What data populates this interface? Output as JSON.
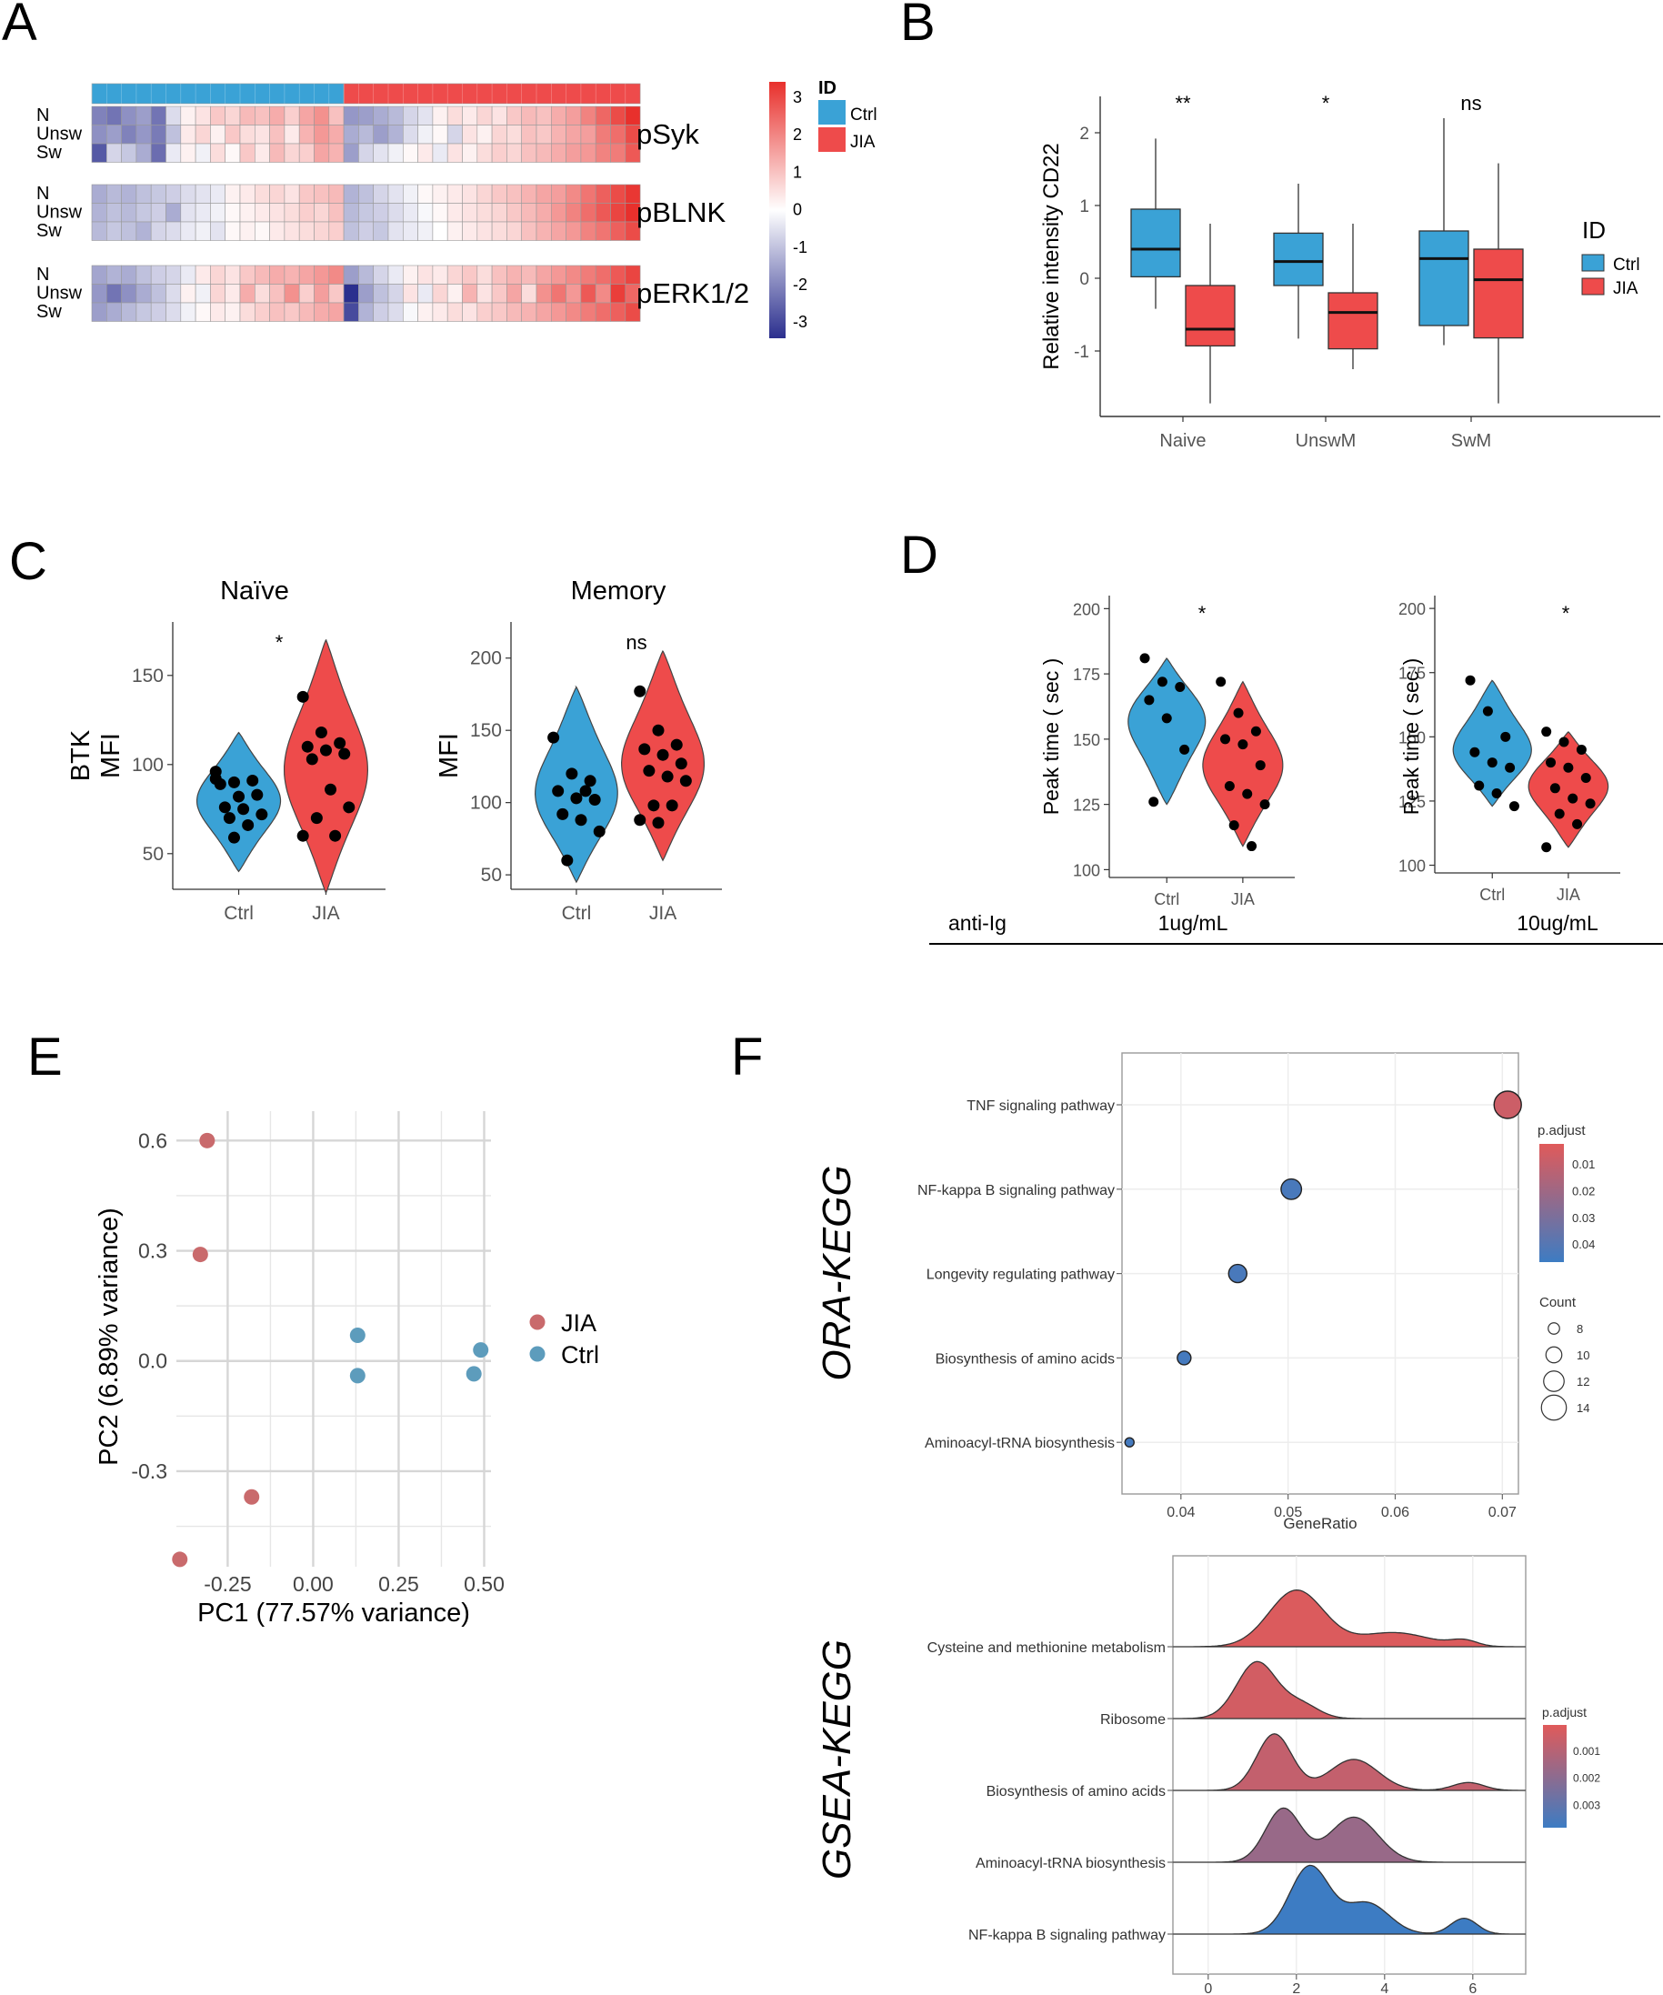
{
  "colors": {
    "ctrl": "#3AA2D6",
    "jia": "#EE4B4B",
    "pcaJIA": "#C96A6C",
    "pcaCtrl": "#5D9CBC",
    "heatLow": "#2B2F8E",
    "heatMid": "#FFFFFF",
    "heatHigh": "#E8302C",
    "padjHigh": "#E05A5A",
    "padjLow": "#3D7CC3",
    "grid": "#E6E6E6",
    "axis": "#333333"
  },
  "panels": {
    "A": "A",
    "B": "B",
    "C": "C",
    "D": "D",
    "E": "E",
    "F": "F"
  },
  "chart_data": [
    {
      "id": "A",
      "type": "heatmap",
      "groups_bar": {
        "ctrl_count": 17,
        "jia_count": 20
      },
      "row_labels": [
        "N",
        "Unsw",
        "Sw"
      ],
      "blocks": [
        {
          "name": "pSyk",
          "rows": [
            [
              -1.8,
              -2.0,
              -1.6,
              -1.4,
              -2.0,
              -0.5,
              0.2,
              0.4,
              0.8,
              0.6,
              1.0,
              0.9,
              1.2,
              0.7,
              1.3,
              1.6,
              0.9,
              -1.5,
              -1.4,
              -1.2,
              -1.0,
              -0.6,
              -0.4,
              0.2,
              0.5,
              0.3,
              0.6,
              0.4,
              0.8,
              1.0,
              0.9,
              1.2,
              1.4,
              1.8,
              2.2,
              2.6,
              3.0
            ],
            [
              -1.6,
              -1.4,
              -1.8,
              -1.5,
              -1.9,
              -0.9,
              0.3,
              0.6,
              0.2,
              0.8,
              0.5,
              0.4,
              0.9,
              0.3,
              1.1,
              1.5,
              1.2,
              -1.2,
              -1.0,
              -1.4,
              -1.1,
              -0.5,
              -0.2,
              0.1,
              -0.6,
              0.4,
              0.2,
              0.6,
              0.5,
              0.9,
              0.8,
              1.1,
              1.3,
              1.4,
              1.9,
              2.1,
              2.6
            ],
            [
              -2.4,
              -0.6,
              -0.8,
              -1.2,
              -2.1,
              -0.3,
              0.2,
              -0.2,
              0.5,
              0.1,
              0.8,
              0.3,
              1.0,
              0.6,
              0.7,
              1.3,
              1.1,
              -1.4,
              -0.6,
              -0.4,
              -0.2,
              0.1,
              0.3,
              -0.3,
              0.4,
              0.2,
              0.5,
              0.7,
              0.6,
              0.9,
              1.0,
              1.2,
              1.4,
              1.5,
              1.8,
              1.9,
              2.4
            ]
          ]
        },
        {
          "name": "pBLNK",
          "rows": [
            [
              -1.2,
              -1.0,
              -1.1,
              -0.9,
              -0.8,
              -0.7,
              -0.5,
              -0.4,
              -0.3,
              0.2,
              0.3,
              0.5,
              0.6,
              0.4,
              0.8,
              0.9,
              1.0,
              -1.1,
              -0.9,
              -0.6,
              -0.4,
              -0.2,
              0.1,
              0.2,
              0.3,
              0.4,
              0.6,
              0.8,
              0.9,
              1.1,
              1.3,
              1.4,
              1.7,
              2.0,
              2.3,
              2.6,
              2.9
            ],
            [
              -1.1,
              -0.9,
              -1.0,
              -0.8,
              -0.7,
              -1.2,
              -0.4,
              -0.3,
              -0.2,
              0.1,
              0.2,
              0.3,
              0.4,
              0.5,
              0.7,
              0.6,
              0.9,
              -1.0,
              -0.8,
              -0.7,
              -0.5,
              -0.3,
              -0.1,
              0.1,
              0.3,
              0.4,
              0.5,
              0.6,
              0.8,
              1.0,
              1.2,
              1.5,
              1.8,
              2.1,
              2.4,
              2.7,
              3.0
            ],
            [
              -1.0,
              -0.8,
              -0.9,
              -1.1,
              -0.6,
              -0.5,
              -0.3,
              -0.2,
              -0.4,
              0.1,
              0.2,
              0.1,
              0.3,
              0.4,
              0.5,
              0.6,
              0.7,
              -0.9,
              -0.7,
              -0.8,
              -0.4,
              -0.3,
              -0.2,
              0.0,
              0.2,
              0.3,
              0.4,
              0.5,
              0.6,
              0.9,
              1.1,
              1.3,
              1.5,
              1.8,
              2.0,
              2.3,
              2.6
            ]
          ]
        },
        {
          "name": "pERK1/2",
          "rows": [
            [
              -1.3,
              -1.1,
              -1.2,
              -0.9,
              -0.7,
              -0.6,
              -0.3,
              0.3,
              0.6,
              0.4,
              0.8,
              1.0,
              1.2,
              1.1,
              1.3,
              1.5,
              1.7,
              -1.4,
              -1.0,
              -0.6,
              -0.3,
              0.2,
              0.4,
              0.3,
              0.6,
              0.8,
              0.5,
              0.9,
              1.1,
              1.0,
              1.3,
              1.5,
              1.7,
              1.9,
              2.1,
              2.4,
              2.7
            ],
            [
              -1.5,
              -2.0,
              -1.6,
              -1.2,
              -0.9,
              -0.5,
              0.2,
              -0.2,
              0.6,
              0.3,
              1.2,
              0.5,
              0.9,
              1.6,
              0.7,
              1.4,
              0.8,
              -3.0,
              -1.4,
              -0.9,
              -0.6,
              0.4,
              -0.3,
              0.6,
              0.2,
              1.1,
              0.4,
              0.8,
              1.3,
              0.5,
              1.6,
              2.0,
              1.5,
              2.4,
              1.7,
              2.8,
              2.2
            ],
            [
              -1.4,
              -1.2,
              -1.0,
              -0.8,
              -0.7,
              -0.5,
              -0.2,
              0.1,
              0.3,
              0.2,
              0.5,
              0.7,
              0.9,
              0.8,
              1.0,
              1.2,
              1.3,
              -2.6,
              -1.1,
              -0.7,
              -0.5,
              -0.1,
              0.2,
              0.3,
              0.5,
              0.4,
              0.7,
              0.8,
              1.0,
              1.1,
              1.3,
              1.5,
              1.7,
              1.9,
              2.1,
              2.3,
              2.6
            ]
          ]
        }
      ],
      "colorbar": {
        "range": [
          -3,
          3
        ],
        "ticks": [
          "3",
          "2",
          "1",
          "0",
          "-1",
          "-2",
          "-3"
        ]
      },
      "legend": {
        "title": "ID",
        "items": [
          "Ctrl",
          "JIA"
        ]
      }
    },
    {
      "id": "B",
      "type": "box",
      "categories": [
        "Naive",
        "UnswM",
        "SwM"
      ],
      "ylabel": "Relative intensity CD22",
      "ylim": [
        -1.9,
        2.5
      ],
      "yticks": [
        "-1",
        "0",
        "1",
        "2"
      ],
      "significance": [
        "**",
        "*",
        "ns"
      ],
      "legend": {
        "title": "ID",
        "items": [
          "Ctrl",
          "JIA"
        ]
      },
      "series": [
        {
          "name": "Ctrl",
          "boxes": [
            {
              "min": -0.42,
              "q1": 0.02,
              "median": 0.4,
              "q3": 0.95,
              "max": 1.92
            },
            {
              "min": -0.83,
              "q1": -0.1,
              "median": 0.23,
              "q3": 0.62,
              "max": 1.3
            },
            {
              "min": -0.92,
              "q1": -0.65,
              "median": 0.27,
              "q3": 0.65,
              "max": 2.2
            }
          ]
        },
        {
          "name": "JIA",
          "boxes": [
            {
              "min": -1.72,
              "q1": -0.93,
              "median": -0.7,
              "q3": -0.1,
              "max": 0.75
            },
            {
              "min": -1.25,
              "q1": -0.97,
              "median": -0.47,
              "q3": -0.2,
              "max": 0.75
            },
            {
              "min": -1.72,
              "q1": -0.82,
              "median": -0.02,
              "q3": 0.4,
              "max": 1.58
            }
          ]
        }
      ]
    },
    {
      "id": "C",
      "type": "violin",
      "subplots": [
        {
          "title": "Naïve",
          "ylabel_lines": [
            "BTK",
            "MFI"
          ],
          "ylim": [
            30,
            180
          ],
          "yticks": [
            "50",
            "100",
            "150"
          ],
          "categories": [
            "Ctrl",
            "JIA"
          ],
          "significance": "*",
          "series": [
            {
              "name": "Ctrl",
              "points": [
                92,
                90,
                91,
                89,
                82,
                83,
                76,
                75,
                72,
                70,
                66,
                96,
                59
              ],
              "range": [
                40,
                118
              ]
            },
            {
              "name": "JIA",
              "points": [
                138,
                118,
                112,
                110,
                108,
                106,
                103,
                86,
                76,
                70,
                60,
                60
              ],
              "range": [
                28,
                170
              ]
            }
          ]
        },
        {
          "title": "Memory",
          "ylabel_lines": [
            "MFI"
          ],
          "ylim": [
            40,
            225
          ],
          "yticks": [
            "50",
            "100",
            "150",
            "200"
          ],
          "categories": [
            "Ctrl",
            "JIA"
          ],
          "significance": "ns",
          "series": [
            {
              "name": "Ctrl",
              "points": [
                145,
                120,
                115,
                108,
                103,
                102,
                92,
                88,
                80,
                60,
                108
              ],
              "range": [
                45,
                180
              ]
            },
            {
              "name": "JIA",
              "points": [
                177,
                150,
                140,
                137,
                133,
                127,
                122,
                118,
                115,
                98,
                98,
                88,
                86
              ],
              "range": [
                60,
                205
              ]
            }
          ]
        }
      ]
    },
    {
      "id": "D",
      "type": "violin",
      "subplots": [
        {
          "ylabel": "Peak time ( sec )",
          "ylim": [
            97,
            205
          ],
          "yticks": [
            "100",
            "125",
            "150",
            "175",
            "200"
          ],
          "categories": [
            "Ctrl",
            "JIA"
          ],
          "significance": "*",
          "series": [
            {
              "name": "Ctrl",
              "points": [
                181,
                172,
                170,
                165,
                158,
                146,
                126
              ],
              "range": [
                125,
                181
              ]
            },
            {
              "name": "JIA",
              "points": [
                172,
                160,
                153,
                150,
                148,
                140,
                132,
                129,
                125,
                117,
                109
              ],
              "range": [
                109,
                172
              ]
            }
          ]
        },
        {
          "ylabel": "Peak time ( sec )",
          "ylim": [
            97,
            205
          ],
          "yticks": [
            "100",
            "125",
            "150",
            "175",
            "200"
          ],
          "categories": [
            "Ctrl",
            "JIA"
          ],
          "significance": "*",
          "series": [
            {
              "name": "Ctrl",
              "points": [
                172,
                160,
                150,
                144,
                140,
                138,
                131,
                128,
                123
              ],
              "range": [
                123,
                172
              ]
            },
            {
              "name": "JIA",
              "points": [
                152,
                148,
                145,
                140,
                138,
                134,
                130,
                126,
                124,
                120,
                116,
                107
              ],
              "range": [
                107,
                152
              ]
            }
          ]
        }
      ],
      "footer": {
        "label": "anti-Ig",
        "conditions": [
          "1ug/mL",
          "10ug/mL"
        ]
      }
    },
    {
      "id": "E",
      "type": "scatter",
      "xlabel": "PC1 (77.57% variance)",
      "ylabel": "PC2 (6.89% variance)",
      "xlim": [
        -0.4,
        0.52
      ],
      "ylim": [
        -0.56,
        0.68
      ],
      "xticks": [
        "-0.25",
        "0.00",
        "0.25",
        "0.50"
      ],
      "yticks": [
        "0.6",
        "0.3",
        "0.0",
        "-0.3"
      ],
      "legend": [
        "JIA",
        "Ctrl"
      ],
      "series": [
        {
          "name": "JIA",
          "points": [
            [
              -0.31,
              0.6
            ],
            [
              -0.33,
              0.29
            ],
            [
              -0.18,
              -0.37
            ],
            [
              -0.39,
              -0.54
            ]
          ]
        },
        {
          "name": "Ctrl",
          "points": [
            [
              0.13,
              0.07
            ],
            [
              0.13,
              -0.04
            ],
            [
              0.49,
              0.03
            ],
            [
              0.47,
              -0.035
            ]
          ]
        }
      ]
    },
    {
      "id": "F-ORA",
      "type": "scatter",
      "side_label": "ORA-KEGG",
      "xlabel": "GeneRatio",
      "xlim": [
        0.0345,
        0.0715
      ],
      "xticks": [
        "0.04",
        "0.05",
        "0.06",
        "0.07"
      ],
      "pathways": [
        "TNF signaling pathway",
        "NF-kappa B signaling pathway",
        "Longevity regulating pathway",
        "Biosynthesis of amino acids",
        "Aminoacyl-tRNA biosynthesis"
      ],
      "points": [
        {
          "pathway": "TNF signaling pathway",
          "generatio": 0.0705,
          "count": 15,
          "padj": 0.013
        },
        {
          "pathway": "NF-kappa B signaling pathway",
          "generatio": 0.0503,
          "count": 12,
          "padj": 0.045
        },
        {
          "pathway": "Longevity regulating pathway",
          "generatio": 0.0453,
          "count": 11,
          "padj": 0.045
        },
        {
          "pathway": "Biosynthesis of amino acids",
          "generatio": 0.0403,
          "count": 9,
          "padj": 0.046
        },
        {
          "pathway": "Aminoacyl-tRNA biosynthesis",
          "generatio": 0.0352,
          "count": 7,
          "padj": 0.046
        }
      ],
      "color_legend": {
        "title": "p.adjust",
        "ticks": [
          "0.01",
          "0.02",
          "0.03",
          "0.04"
        ]
      },
      "size_legend": {
        "title": "Count",
        "ticks": [
          "8",
          "10",
          "12",
          "14"
        ]
      }
    },
    {
      "id": "F-GSEA",
      "type": "area",
      "side_label": "GSEA-KEGG",
      "xlim": [
        -0.8,
        7.2
      ],
      "xticks": [
        "0",
        "2",
        "4",
        "6"
      ],
      "pathways": [
        "Cysteine and methionine metabolism",
        "Ribosome",
        "Biosynthesis of amino acids",
        "Aminoacyl-tRNA biosynthesis",
        "NF-kappa B signaling pathway"
      ],
      "ridges": [
        {
          "pathway": "Cysteine and methionine metabolism",
          "padj": 0.0004,
          "peaks": [
            [
              2.0,
              0.62,
              1.0
            ],
            [
              4.2,
              0.8,
              0.25
            ],
            [
              5.8,
              0.3,
              0.1
            ]
          ]
        },
        {
          "pathway": "Ribosome",
          "padj": 0.0006,
          "peaks": [
            [
              1.1,
              0.45,
              1.0
            ],
            [
              2.1,
              0.4,
              0.25
            ]
          ]
        },
        {
          "pathway": "Biosynthesis of amino acids",
          "padj": 0.0009,
          "peaks": [
            [
              1.5,
              0.4,
              1.0
            ],
            [
              3.3,
              0.55,
              0.55
            ],
            [
              5.9,
              0.35,
              0.14
            ]
          ]
        },
        {
          "pathway": "Aminoacyl-tRNA biosynthesis",
          "padj": 0.0018,
          "peaks": [
            [
              1.7,
              0.4,
              0.95
            ],
            [
              3.3,
              0.55,
              0.8
            ]
          ]
        },
        {
          "pathway": "NF-kappa B signaling pathway",
          "padj": 0.004,
          "peaks": [
            [
              2.3,
              0.45,
              1.2
            ],
            [
              3.6,
              0.5,
              0.55
            ],
            [
              5.8,
              0.3,
              0.28
            ]
          ]
        }
      ],
      "color_legend": {
        "title": "p.adjust",
        "ticks": [
          "0.001",
          "0.002",
          "0.003"
        ]
      }
    }
  ]
}
